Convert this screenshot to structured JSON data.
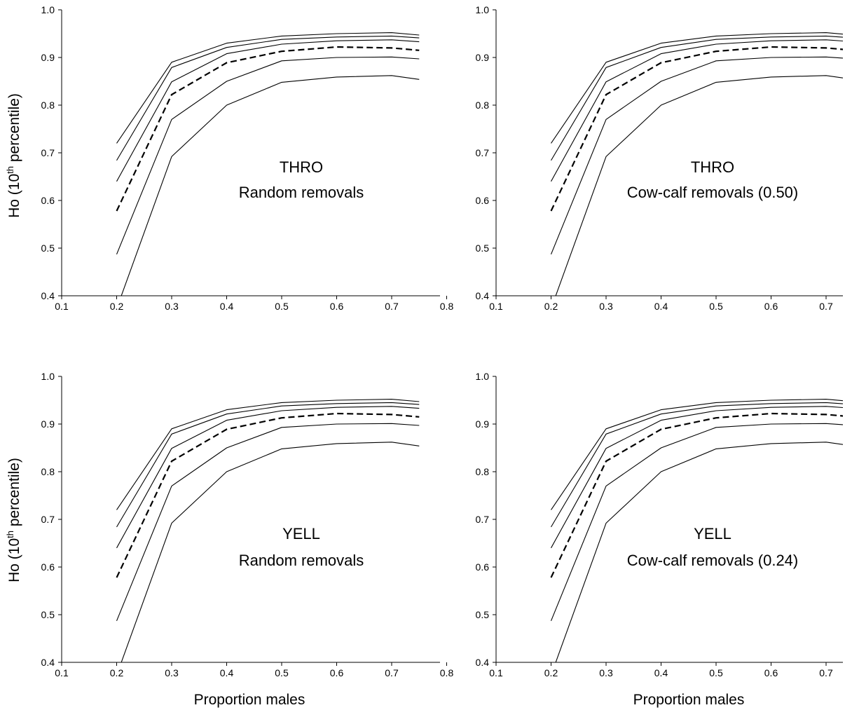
{
  "figure": {
    "ylabel_main": "Ho (10",
    "ylabel_sup": "th",
    "ylabel_tail": " percentile)",
    "xlabel": "Proportion males"
  },
  "chart_data": [
    {
      "type": "line",
      "panel_label_1": "THRO",
      "panel_label_2": "Random removals",
      "xlabel": "",
      "ylabel": "Ho (10th percentile)",
      "xlim": [
        0.1,
        0.8
      ],
      "ylim": [
        0.4,
        1.0
      ],
      "x_ticks": [
        "0.1",
        "0.2",
        "0.3",
        "0.4",
        "0.5",
        "0.6",
        "0.7",
        "0.8"
      ],
      "y_ticks": [
        "0.4",
        "0.5",
        "0.6",
        "0.7",
        "0.8",
        "0.9",
        "1.0"
      ],
      "x": [
        0.2,
        0.3,
        0.4,
        0.5,
        0.6,
        0.7,
        0.75
      ],
      "series": [
        {
          "style": "solid",
          "values": [
            0.72,
            0.89,
            0.93,
            0.945,
            0.95,
            0.952,
            0.947
          ]
        },
        {
          "style": "solid",
          "values": [
            0.684,
            0.879,
            0.921,
            0.938,
            0.943,
            0.945,
            0.941
          ]
        },
        {
          "style": "solid",
          "values": [
            0.64,
            0.849,
            0.908,
            0.928,
            0.935,
            0.937,
            0.933
          ]
        },
        {
          "style": "dashed",
          "values": [
            0.578,
            0.822,
            0.889,
            0.913,
            0.922,
            0.92,
            0.915
          ]
        },
        {
          "style": "solid",
          "values": [
            0.487,
            0.77,
            0.85,
            0.893,
            0.9,
            0.901,
            0.897
          ]
        },
        {
          "style": "solid",
          "values": [
            0.373,
            0.692,
            0.8,
            0.848,
            0.859,
            0.862,
            0.854
          ]
        }
      ]
    },
    {
      "type": "line",
      "panel_label_1": "THRO",
      "panel_label_2": "Cow-calf removals (0.50)",
      "xlabel": "",
      "ylabel": "",
      "xlim": [
        0.1,
        0.75
      ],
      "ylim": [
        0.4,
        1.0
      ],
      "x_ticks": [
        "0.1",
        "0.2",
        "0.3",
        "0.4",
        "0.5",
        "0.6",
        "0.7"
      ],
      "y_ticks": [
        "0.4",
        "0.5",
        "0.6",
        "0.7",
        "0.8",
        "0.9",
        "1.0"
      ],
      "x": [
        0.2,
        0.3,
        0.4,
        0.5,
        0.6,
        0.7,
        0.75
      ],
      "series": [
        {
          "style": "solid",
          "values": [
            0.72,
            0.89,
            0.93,
            0.945,
            0.95,
            0.952,
            0.947
          ]
        },
        {
          "style": "solid",
          "values": [
            0.684,
            0.879,
            0.921,
            0.938,
            0.943,
            0.945,
            0.941
          ]
        },
        {
          "style": "solid",
          "values": [
            0.64,
            0.849,
            0.908,
            0.928,
            0.935,
            0.937,
            0.933
          ]
        },
        {
          "style": "dashed",
          "values": [
            0.578,
            0.822,
            0.889,
            0.913,
            0.922,
            0.92,
            0.915
          ]
        },
        {
          "style": "solid",
          "values": [
            0.487,
            0.77,
            0.85,
            0.893,
            0.9,
            0.901,
            0.897
          ]
        },
        {
          "style": "solid",
          "values": [
            0.373,
            0.692,
            0.8,
            0.848,
            0.859,
            0.862,
            0.854
          ]
        }
      ]
    },
    {
      "type": "line",
      "panel_label_1": "YELL",
      "panel_label_2": "Random removals",
      "xlabel": "Proportion males",
      "ylabel": "Ho (10th percentile)",
      "xlim": [
        0.1,
        0.8
      ],
      "ylim": [
        0.4,
        1.0
      ],
      "x_ticks": [
        "0.1",
        "0.2",
        "0.3",
        "0.4",
        "0.5",
        "0.6",
        "0.7",
        "0.8"
      ],
      "y_ticks": [
        "0.4",
        "0.5",
        "0.6",
        "0.7",
        "0.8",
        "0.9",
        "1.0"
      ],
      "x": [
        0.2,
        0.3,
        0.4,
        0.5,
        0.6,
        0.7,
        0.75
      ],
      "series": [
        {
          "style": "solid",
          "values": [
            0.72,
            0.89,
            0.93,
            0.945,
            0.95,
            0.952,
            0.947
          ]
        },
        {
          "style": "solid",
          "values": [
            0.684,
            0.879,
            0.921,
            0.938,
            0.943,
            0.945,
            0.941
          ]
        },
        {
          "style": "solid",
          "values": [
            0.64,
            0.849,
            0.908,
            0.928,
            0.935,
            0.937,
            0.933
          ]
        },
        {
          "style": "dashed",
          "values": [
            0.578,
            0.822,
            0.889,
            0.913,
            0.922,
            0.92,
            0.915
          ]
        },
        {
          "style": "solid",
          "values": [
            0.487,
            0.77,
            0.85,
            0.893,
            0.9,
            0.901,
            0.897
          ]
        },
        {
          "style": "solid",
          "values": [
            0.373,
            0.692,
            0.8,
            0.848,
            0.859,
            0.862,
            0.854
          ]
        }
      ]
    },
    {
      "type": "line",
      "panel_label_1": "YELL",
      "panel_label_2": "Cow-calf removals (0.24)",
      "xlabel": "Proportion males",
      "ylabel": "",
      "xlim": [
        0.1,
        0.75
      ],
      "ylim": [
        0.4,
        1.0
      ],
      "x_ticks": [
        "0.1",
        "0.2",
        "0.3",
        "0.4",
        "0.5",
        "0.6",
        "0.7"
      ],
      "y_ticks": [
        "0.4",
        "0.5",
        "0.6",
        "0.7",
        "0.8",
        "0.9",
        "1.0"
      ],
      "x": [
        0.2,
        0.3,
        0.4,
        0.5,
        0.6,
        0.7,
        0.75
      ],
      "series": [
        {
          "style": "solid",
          "values": [
            0.72,
            0.89,
            0.93,
            0.945,
            0.95,
            0.952,
            0.947
          ]
        },
        {
          "style": "solid",
          "values": [
            0.684,
            0.879,
            0.921,
            0.938,
            0.943,
            0.945,
            0.941
          ]
        },
        {
          "style": "solid",
          "values": [
            0.64,
            0.849,
            0.908,
            0.928,
            0.935,
            0.937,
            0.933
          ]
        },
        {
          "style": "dashed",
          "values": [
            0.578,
            0.822,
            0.889,
            0.913,
            0.922,
            0.92,
            0.915
          ]
        },
        {
          "style": "solid",
          "values": [
            0.487,
            0.77,
            0.85,
            0.893,
            0.9,
            0.901,
            0.897
          ]
        },
        {
          "style": "solid",
          "values": [
            0.373,
            0.692,
            0.8,
            0.848,
            0.859,
            0.862,
            0.854
          ]
        }
      ]
    }
  ]
}
